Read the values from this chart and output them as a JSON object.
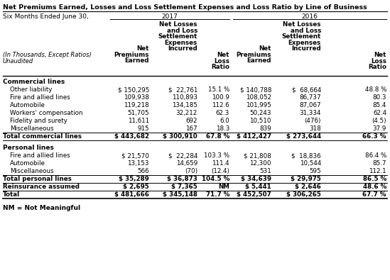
{
  "title": "Net Premiums Earned, Losses and Loss Settlement Expenses and Loss Ratio by Line of Business",
  "subtitle_left": "Six Months Ended June 30,",
  "rows_commercial": [
    [
      "Other liability",
      "$ 150,295",
      "$  22,761",
      "15.1 %",
      "$ 140,788",
      "$  68,664",
      "48.8 %"
    ],
    [
      "Fire and allied lines",
      "109,938",
      "110,893",
      "100.9",
      "108,052",
      "86,737",
      "80.3"
    ],
    [
      "Automobile",
      "119,218",
      "134,185",
      "112.6",
      "101,995",
      "87,067",
      "85.4"
    ],
    [
      "Workers' compensation",
      "51,705",
      "32,212",
      "62.3",
      "50,243",
      "31,334",
      "62.4"
    ],
    [
      "Fidelity and surety",
      "11,611",
      "692",
      "6.0",
      "10,510",
      "(476)",
      "(4.5)"
    ],
    [
      "Miscellaneous",
      "915",
      "167",
      "18.3",
      "839",
      "318",
      "37.9"
    ]
  ],
  "total_commercial": [
    "Total commercial lines",
    "$ 443,682",
    "$ 300,910",
    "67.8 %",
    "$ 412,427",
    "$ 273,644",
    "66.3 %"
  ],
  "rows_personal": [
    [
      "Fire and allied lines",
      "$ 21,570",
      "$  22,284",
      "103.3 %",
      "$ 21,808",
      "$  18,836",
      "86.4 %"
    ],
    [
      "Automobile",
      "13,153",
      "14,659",
      "111.4",
      "12,300",
      "10,544",
      "85.7"
    ],
    [
      "Miscellaneous",
      "566",
      "(70)",
      "(12.4)",
      "531",
      "595",
      "112.1"
    ]
  ],
  "total_personal": [
    "Total personal lines",
    "$ 35,289",
    "$ 36,873",
    "104.5 %",
    "$ 34,639",
    "$ 29,975",
    "86.5 %"
  ],
  "reinsurance": [
    "Reinsurance assumed",
    "$ 2,695",
    "$ 7,365",
    "NM",
    "$ 5,441",
    "$ 2,646",
    "48.6 %"
  ],
  "total": [
    "Total",
    "$ 481,666",
    "$ 345,148",
    "71.7 %",
    "$ 452,507",
    "$ 306,265",
    "67.7 %"
  ],
  "footnote": "NM = Not Meaningful",
  "bg_color": "#ffffff",
  "text_color": "#000000"
}
